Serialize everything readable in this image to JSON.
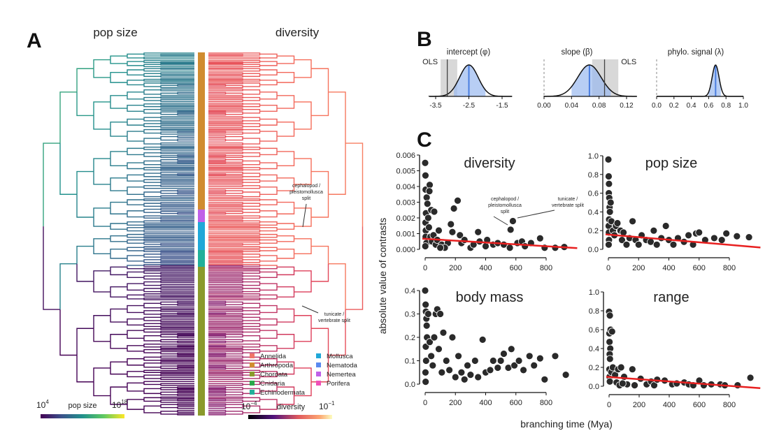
{
  "panel_labels": {
    "a": "A",
    "b": "B",
    "c": "C"
  },
  "panel_a": {
    "left_title": "pop size",
    "right_title": "diversity",
    "annotations": [
      "cephalopod /",
      "pleistomollusca",
      "split",
      "tunicate /",
      "vertebrate split"
    ],
    "legend": [
      {
        "label": "Annelida",
        "color": "#f07468"
      },
      {
        "label": "Arthropoda",
        "color": "#d08c30"
      },
      {
        "label": "Chordata",
        "color": "#8a9a2c"
      },
      {
        "label": "Cnidaria",
        "color": "#2aa84a"
      },
      {
        "label": "Echinodermata",
        "color": "#22b09a"
      },
      {
        "label": "Mollusca",
        "color": "#20a8d8"
      },
      {
        "label": "Nematoda",
        "color": "#5a8af0"
      },
      {
        "label": "Nemertea",
        "color": "#c060e8"
      },
      {
        "label": "Porifera",
        "color": "#f050b8"
      }
    ],
    "popsize_scale": {
      "label": "pop size",
      "min_base": "10",
      "min_exp": "4",
      "max_base": "10",
      "max_exp": "18",
      "colormap": "viridis"
    },
    "diversity_scale": {
      "label": "diversity",
      "min_base": "10",
      "min_exp": "−4",
      "max_base": "10",
      "max_exp": "−1",
      "colormap": "magma"
    }
  },
  "chart_data": [
    {
      "type": "area",
      "title": "intercept (φ)",
      "xlim": [
        -3.7,
        -1.2
      ],
      "xticks": [
        "-3.5",
        "-2.5",
        "-1.5"
      ],
      "tick_values": [
        -3.5,
        -2.5,
        -1.5
      ],
      "posterior_mean": -2.5,
      "posterior_sd": 0.28,
      "ci": [
        -2.95,
        -2.0
      ],
      "ols": -3.15,
      "ols_ci": [
        -3.35,
        -2.85
      ],
      "ols_label": "OLS"
    },
    {
      "type": "area",
      "title": "slope (β)",
      "xlim": [
        0.0,
        0.135
      ],
      "xticks": [
        "0.00",
        "0.04",
        "0.08",
        "0.12"
      ],
      "tick_values": [
        0,
        0.04,
        0.08,
        0.12
      ],
      "posterior_mean": 0.066,
      "posterior_sd": 0.017,
      "ci": [
        0.04,
        0.097
      ],
      "ols": 0.088,
      "ols_ci": [
        0.07,
        0.108
      ],
      "ols_label": "OLS",
      "zero_line": 0
    },
    {
      "type": "area",
      "title": "phylo. signal (λ)",
      "xlim": [
        0.0,
        1.0
      ],
      "xticks": [
        "0.0",
        "0.2",
        "0.4",
        "0.6",
        "0.8",
        "1.0"
      ],
      "tick_values": [
        0,
        0.2,
        0.4,
        0.6,
        0.8,
        1.0
      ],
      "posterior_mean": 0.68,
      "posterior_sd": 0.04,
      "ci": [
        0.6,
        0.74
      ],
      "zero_line": 0
    },
    {
      "type": "scatter",
      "title": "diversity",
      "xlim": [
        0,
        950
      ],
      "ylim": [
        0,
        0.006
      ],
      "xticks": [
        "0",
        "200",
        "400",
        "600",
        "800"
      ],
      "yticks": [
        "0.000",
        "0.001",
        "0.002",
        "0.003",
        "0.004",
        "0.005",
        "0.006"
      ],
      "fit": [
        [
          0,
          0.00068
        ],
        [
          950,
          8e-05
        ]
      ],
      "annotations": [
        "cephalopod /",
        "pleistomollusca",
        "split",
        "tunicate /",
        "vertebrate split"
      ],
      "points": [
        [
          0,
          0.0055
        ],
        [
          2,
          0.0047
        ],
        [
          3,
          0.0038
        ],
        [
          10,
          0.0033
        ],
        [
          15,
          0.0029
        ],
        [
          5,
          0.0023
        ],
        [
          2,
          0.0017
        ],
        [
          4,
          0.0012
        ],
        [
          3,
          0.0008
        ],
        [
          8,
          0.0004
        ],
        [
          1,
          0.0002
        ],
        [
          30,
          0.0041
        ],
        [
          28,
          0.0037
        ],
        [
          20,
          0.002
        ],
        [
          40,
          0.0025
        ],
        [
          60,
          0.0024
        ],
        [
          25,
          0.0014
        ],
        [
          35,
          0.0008
        ],
        [
          45,
          0.0005
        ],
        [
          55,
          0.0009
        ],
        [
          70,
          0.0003
        ],
        [
          80,
          0.0006
        ],
        [
          90,
          0.0012
        ],
        [
          110,
          0.0003
        ],
        [
          150,
          0.0004
        ],
        [
          170,
          0.0016
        ],
        [
          180,
          0.0011
        ],
        [
          190,
          0.0026
        ],
        [
          215,
          0.0031
        ],
        [
          230,
          0.0009
        ],
        [
          240,
          0.0004
        ],
        [
          260,
          0.0006
        ],
        [
          300,
          0.0001
        ],
        [
          320,
          0.0003
        ],
        [
          350,
          0.0011
        ],
        [
          360,
          0.0005
        ],
        [
          400,
          0.0002
        ],
        [
          410,
          0.0006
        ],
        [
          450,
          0.0003
        ],
        [
          480,
          0.0004
        ],
        [
          520,
          0.0003
        ],
        [
          560,
          0.0001
        ],
        [
          565,
          0.00125
        ],
        [
          580,
          0.0018
        ],
        [
          610,
          0.0004
        ],
        [
          640,
          0.0005
        ],
        [
          660,
          0.0002
        ],
        [
          700,
          0.0004
        ],
        [
          760,
          0.0007
        ],
        [
          790,
          0.0001
        ],
        [
          860,
          0.0001
        ],
        [
          920,
          0.00015
        ],
        [
          130,
          0.0001
        ],
        [
          100,
          0.0001
        ]
      ]
    },
    {
      "type": "scatter",
      "title": "pop size",
      "xlim": [
        0,
        950
      ],
      "ylim": [
        0,
        1.0
      ],
      "xticks": [
        "0",
        "200",
        "400",
        "600",
        "800"
      ],
      "yticks": [
        "0.0",
        "0.2",
        "0.4",
        "0.6",
        "0.8",
        "1.0"
      ],
      "fit": [
        [
          0,
          0.16
        ],
        [
          950,
          0.02
        ]
      ],
      "points": [
        [
          0,
          0.96
        ],
        [
          2,
          0.78
        ],
        [
          4,
          0.7
        ],
        [
          3,
          0.6
        ],
        [
          6,
          0.55
        ],
        [
          8,
          0.45
        ],
        [
          10,
          0.4
        ],
        [
          5,
          0.32
        ],
        [
          2,
          0.25
        ],
        [
          3,
          0.18
        ],
        [
          4,
          0.1
        ],
        [
          2,
          0.05
        ],
        [
          15,
          0.5
        ],
        [
          20,
          0.3
        ],
        [
          30,
          0.2
        ],
        [
          40,
          0.15
        ],
        [
          50,
          0.25
        ],
        [
          60,
          0.28
        ],
        [
          80,
          0.2
        ],
        [
          90,
          0.1
        ],
        [
          100,
          0.18
        ],
        [
          120,
          0.05
        ],
        [
          140,
          0.12
        ],
        [
          160,
          0.3
        ],
        [
          180,
          0.1
        ],
        [
          200,
          0.05
        ],
        [
          220,
          0.15
        ],
        [
          250,
          0.1
        ],
        [
          280,
          0.08
        ],
        [
          300,
          0.2
        ],
        [
          320,
          0.05
        ],
        [
          350,
          0.12
        ],
        [
          380,
          0.25
        ],
        [
          400,
          0.1
        ],
        [
          430,
          0.05
        ],
        [
          460,
          0.12
        ],
        [
          500,
          0.08
        ],
        [
          530,
          0.15
        ],
        [
          560,
          0.05
        ],
        [
          580,
          0.17
        ],
        [
          600,
          0.18
        ],
        [
          640,
          0.1
        ],
        [
          700,
          0.12
        ],
        [
          750,
          0.1
        ],
        [
          780,
          0.17
        ],
        [
          850,
          0.14
        ],
        [
          930,
          0.13
        ]
      ]
    },
    {
      "type": "scatter",
      "title": "body mass",
      "xlim": [
        0,
        950
      ],
      "ylim": [
        0,
        0.4
      ],
      "xticks": [
        "0",
        "200",
        "400",
        "600",
        "800"
      ],
      "yticks": [
        "0.0",
        "0.1",
        "0.2",
        "0.3",
        "0.4"
      ],
      "points": [
        [
          0,
          0.4
        ],
        [
          3,
          0.34
        ],
        [
          5,
          0.31
        ],
        [
          8,
          0.28
        ],
        [
          10,
          0.25
        ],
        [
          12,
          0.2
        ],
        [
          4,
          0.16
        ],
        [
          6,
          0.1
        ],
        [
          2,
          0.05
        ],
        [
          3,
          0.01
        ],
        [
          20,
          0.3
        ],
        [
          30,
          0.18
        ],
        [
          40,
          0.12
        ],
        [
          50,
          0.08
        ],
        [
          60,
          0.2
        ],
        [
          70,
          0.3
        ],
        [
          80,
          0.32
        ],
        [
          90,
          0.15
        ],
        [
          100,
          0.3
        ],
        [
          110,
          0.05
        ],
        [
          120,
          0.22
        ],
        [
          140,
          0.1
        ],
        [
          160,
          0.06
        ],
        [
          180,
          0.2
        ],
        [
          200,
          0.03
        ],
        [
          220,
          0.12
        ],
        [
          240,
          0.05
        ],
        [
          260,
          0.02
        ],
        [
          280,
          0.08
        ],
        [
          300,
          0.04
        ],
        [
          330,
          0.1
        ],
        [
          350,
          0.03
        ],
        [
          380,
          0.19
        ],
        [
          400,
          0.05
        ],
        [
          430,
          0.06
        ],
        [
          450,
          0.1
        ],
        [
          480,
          0.07
        ],
        [
          500,
          0.1
        ],
        [
          520,
          0.13
        ],
        [
          550,
          0.07
        ],
        [
          570,
          0.15
        ],
        [
          590,
          0.08
        ],
        [
          620,
          0.1
        ],
        [
          650,
          0.06
        ],
        [
          690,
          0.12
        ],
        [
          720,
          0.08
        ],
        [
          760,
          0.11
        ],
        [
          790,
          0.02
        ],
        [
          860,
          0.12
        ],
        [
          930,
          0.04
        ]
      ]
    },
    {
      "type": "scatter",
      "title": "range",
      "xlim": [
        0,
        950
      ],
      "ylim": [
        0,
        1.0
      ],
      "xticks": [
        "0",
        "200",
        "400",
        "600",
        "800"
      ],
      "yticks": [
        "0.0",
        "0.2",
        "0.4",
        "0.6",
        "0.8",
        "1.0"
      ],
      "fit": [
        [
          0,
          0.1
        ],
        [
          950,
          -0.02
        ]
      ],
      "points": [
        [
          0,
          0.79
        ],
        [
          5,
          0.75
        ],
        [
          2,
          0.56
        ],
        [
          10,
          0.6
        ],
        [
          20,
          0.58
        ],
        [
          3,
          0.47
        ],
        [
          8,
          0.4
        ],
        [
          4,
          0.34
        ],
        [
          6,
          0.29
        ],
        [
          2,
          0.18
        ],
        [
          3,
          0.1
        ],
        [
          5,
          0.05
        ],
        [
          15,
          0.15
        ],
        [
          25,
          0.2
        ],
        [
          40,
          0.12
        ],
        [
          60,
          0.18
        ],
        [
          80,
          0.2
        ],
        [
          100,
          0.1
        ],
        [
          120,
          0.02
        ],
        [
          155,
          0.18
        ],
        [
          170,
          0.01
        ],
        [
          210,
          0.08
        ],
        [
          250,
          0.02
        ],
        [
          280,
          0.05
        ],
        [
          300,
          0.01
        ],
        [
          320,
          0.07
        ],
        [
          370,
          0.06
        ],
        [
          420,
          0.02
        ],
        [
          450,
          0.03
        ],
        [
          500,
          0.04
        ],
        [
          530,
          0.02
        ],
        [
          560,
          0.01
        ],
        [
          600,
          0.06
        ],
        [
          630,
          0.01
        ],
        [
          680,
          0.02
        ],
        [
          740,
          0.02
        ],
        [
          770,
          0.01
        ],
        [
          855,
          0.01
        ],
        [
          940,
          0.09
        ],
        [
          50,
          0.04
        ],
        [
          70,
          0.01
        ],
        [
          90,
          0.03
        ]
      ]
    }
  ],
  "panel_c": {
    "ylabel": "absolute value of contrasts",
    "xlabel": "branching time (Mya)"
  }
}
